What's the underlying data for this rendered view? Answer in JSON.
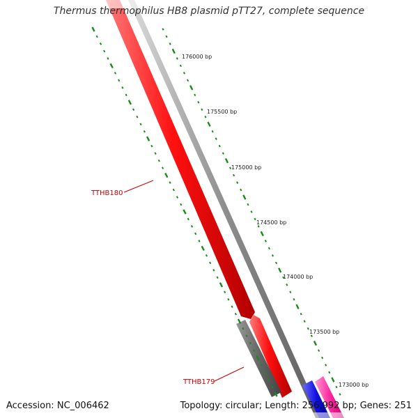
{
  "title": "Thermus thermophilus HB8 plasmid pTT27, complete sequence",
  "footer": {
    "accession_label": "Accession:",
    "accession": "NC_006462",
    "topology_label": "Topology:",
    "topology": "circular",
    "length_label": "Length:",
    "length": "256,992 bp",
    "genes_label": "Genes:",
    "genes": "251"
  },
  "ticks": [
    {
      "label": "176000 bp"
    },
    {
      "label": "175500 bp"
    },
    {
      "label": "175000 bp"
    },
    {
      "label": "174500 bp"
    },
    {
      "label": "174000 bp"
    },
    {
      "label": "173500 bp"
    },
    {
      "label": "173000 bp"
    }
  ],
  "gene_labels": [
    {
      "name": "TTHB180"
    },
    {
      "name": "TTHB179"
    }
  ],
  "colors": {
    "forward_gene": "#ff0000",
    "backbone": "#8c8c8c",
    "gray_gene": "#6b6b6b",
    "blue_gene": "#1010e0",
    "pink_gene": "#ff2aa0",
    "tick": "#1a8a1a",
    "gene_label": "#cc0000"
  }
}
